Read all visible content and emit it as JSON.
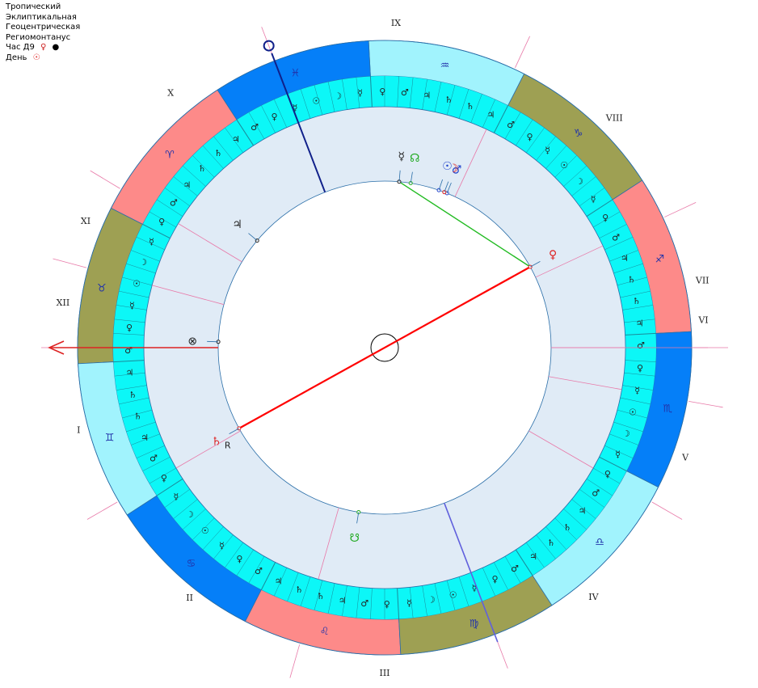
{
  "info": {
    "line1": "Тропический",
    "line2": "Эклиптикальная",
    "line3": "Геоцентрическая",
    "line4": "Региомонтанус",
    "hour_label": "Час Д9",
    "hour_planet": "♀",
    "hour_marker": "●",
    "day_label": "День",
    "day_symbol": "☉"
  },
  "colors": {
    "fire": "#fd8a89",
    "earth": "#9ea053",
    "air": "#a1f3fd",
    "water": "#057ff8",
    "decan_ring": "#0cf7f7",
    "inner_disc": "#e0ebf6",
    "aspect_opposition": "#ff0000",
    "aspect_sextile": "#22bb22"
  },
  "houses": [
    {
      "label": "I",
      "cusp": 180
    },
    {
      "label": "II",
      "cusp": 210
    },
    {
      "label": "III",
      "cusp": 254
    },
    {
      "label": "IV",
      "cusp": 291
    },
    {
      "label": "V",
      "cusp": 330
    },
    {
      "label": "VI",
      "cusp": 350
    },
    {
      "label": "VII",
      "cusp": 0
    },
    {
      "label": "VIII",
      "cusp": 25
    },
    {
      "label": "IX",
      "cusp": 65
    },
    {
      "label": "X",
      "cusp": 111
    },
    {
      "label": "XI",
      "cusp": 149
    },
    {
      "label": "XII",
      "cusp": 165
    }
  ],
  "signs": [
    {
      "name": "Стрелец",
      "glyph": "♐"
    },
    {
      "name": "Козерог",
      "glyph": "♑"
    },
    {
      "name": "Водолей",
      "glyph": "♒"
    },
    {
      "name": "Рыбы",
      "glyph": "♓"
    },
    {
      "name": "Овен",
      "glyph": "♈"
    },
    {
      "name": "Телец",
      "glyph": "♉"
    },
    {
      "name": "Близнецы",
      "glyph": "♊"
    },
    {
      "name": "Рак",
      "glyph": "♋"
    },
    {
      "name": "Лев",
      "glyph": "♌"
    },
    {
      "name": "Дева",
      "glyph": "♍"
    },
    {
      "name": "Весы",
      "glyph": "♎"
    },
    {
      "name": "Скорпион",
      "glyph": "♏"
    }
  ],
  "rulers": [
    "♃",
    "♄",
    "♄",
    "♃",
    "♂",
    "♀",
    "☿",
    "☽",
    "☉",
    "☿",
    "♀",
    "♂"
  ],
  "chart_start_deg": 3,
  "planets": [
    {
      "name": "Венера",
      "glyph": "♀",
      "color": "#dd2222",
      "angle": 29
    },
    {
      "name": "Меркурий",
      "glyph": "☿",
      "color": "#222222",
      "angle": 85
    },
    {
      "name": "Сев. узел",
      "glyph": "☊",
      "color": "#22aa22",
      "angle": 81
    },
    {
      "name": "Марс",
      "glyph": "♂",
      "color": "#2244cc",
      "angle": 68
    },
    {
      "name": "Луна",
      "glyph": "☽",
      "color": "#dd2222",
      "angle": 69
    },
    {
      "name": "Солнце",
      "glyph": "☉",
      "color": "#2244cc",
      "angle": 71
    },
    {
      "name": "Юпитер",
      "glyph": "♃",
      "color": "#222222",
      "angle": 140
    },
    {
      "name": "Фортуна",
      "glyph": "⊗",
      "color": "#222222",
      "angle": 178
    },
    {
      "name": "Сатурн ℞",
      "glyph": "♄",
      "color": "#dd2222",
      "angle": 209
    },
    {
      "name": "Юж. узел",
      "glyph": "☋",
      "color": "#22aa22",
      "angle": 261
    }
  ],
  "retro_mark": "R"
}
